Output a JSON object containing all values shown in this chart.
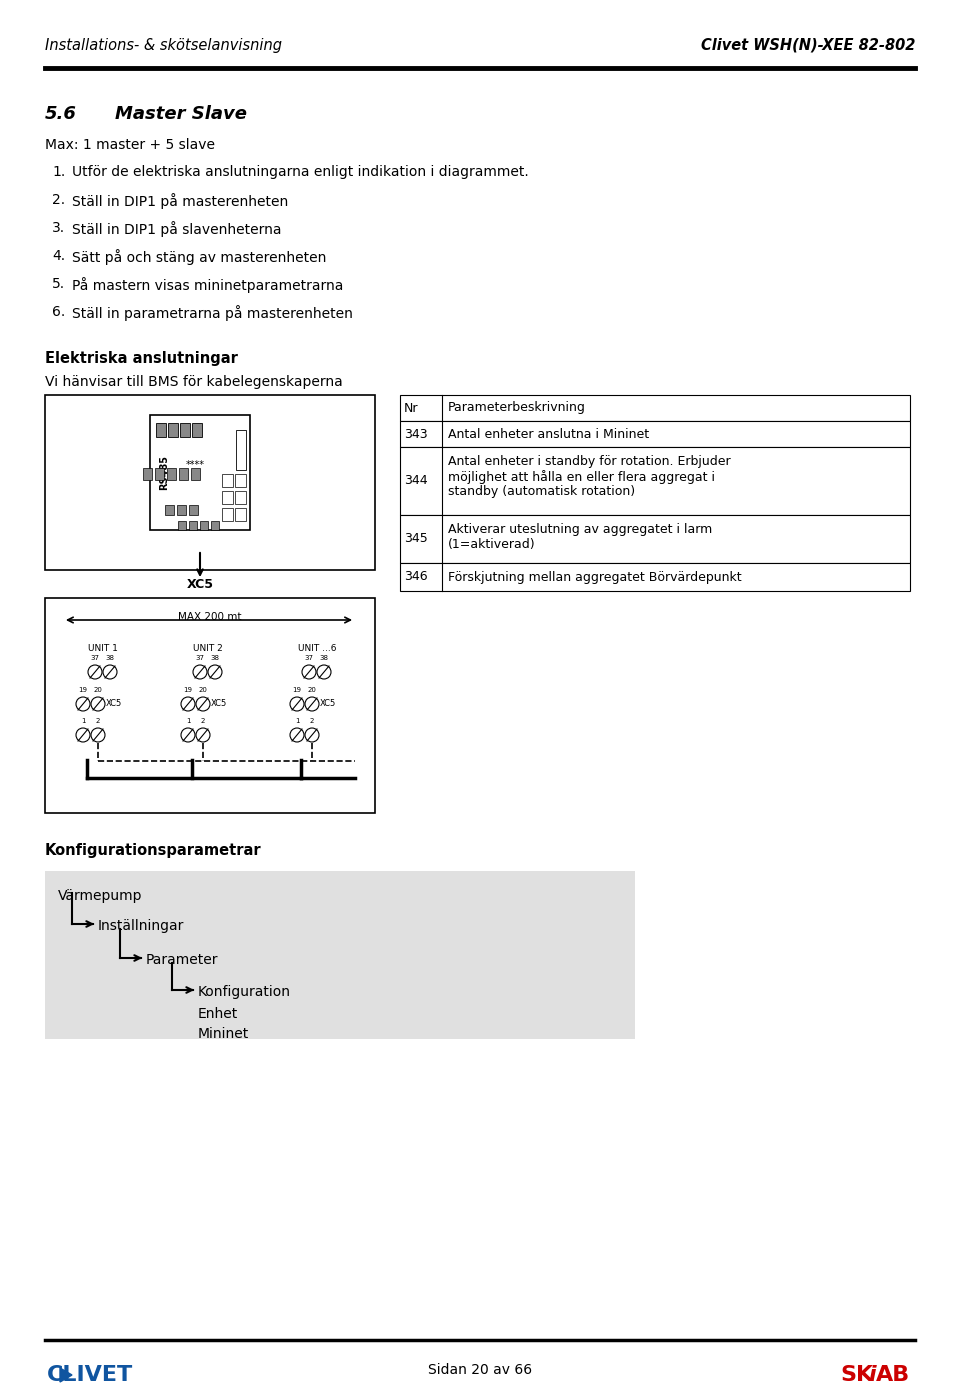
{
  "header_left": "Installations- & skötselanvisning",
  "header_right": "Clivet WSH(N)-XEE 82-802",
  "section_num": "5.6",
  "section_title": "Master Slave",
  "max_text": "Max: 1 master + 5 slave",
  "steps": [
    "Utför de elektriska anslutningarna enligt indikation i diagrammet.",
    "Ställ in DIP1 på masterenheten",
    "Ställ in DIP1 på slavenheterna",
    "Sätt på och stäng av masterenheten",
    "På mastern visas mininetparametrarna",
    "Ställ in parametrarna på masterenheten"
  ],
  "elec_title": "Elektriska anslutningar",
  "elec_subtitle": "Vi hänvisar till BMS för kabelegenskaperna",
  "table_headers": [
    "Nr",
    "Parameterbeskrivning"
  ],
  "table_rows": [
    [
      "343",
      "Antal enheter anslutna i Mininet"
    ],
    [
      "344",
      "Antal enheter i standby för rotation. Erbjuder\nmöjlighet att hålla en eller flera aggregat i\nstandby (automatisk rotation)"
    ],
    [
      "345",
      "Aktiverar uteslutning av aggregatet i larm\n(1=aktiverad)"
    ],
    [
      "346",
      "Förskjutning mellan aggregatet Börvärdepunkt"
    ]
  ],
  "config_title": "Konfigurationsparametrar",
  "footer_text": "Sidan 20 av 66",
  "bg_color": "#ffffff",
  "text_color": "#000000",
  "config_bg_color": "#e0e0e0"
}
